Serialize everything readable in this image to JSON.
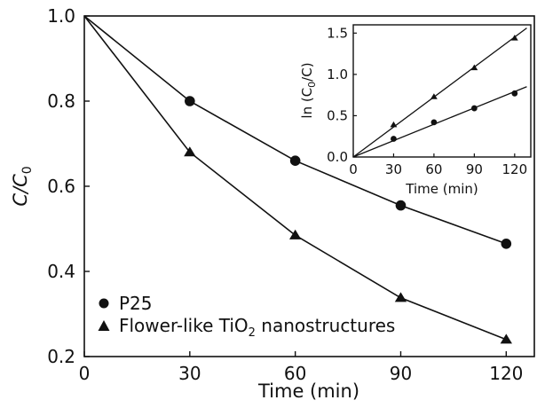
{
  "chart_data": [
    {
      "type": "line",
      "xlabel": "Time (min)",
      "ylabel": {
        "main": "C/C",
        "sub": "0"
      },
      "x": [
        0,
        30,
        60,
        90,
        120
      ],
      "xlim": [
        0,
        128
      ],
      "ylim": [
        0.2,
        1.0
      ],
      "xticks": [
        "0",
        "30",
        "60",
        "90",
        "120"
      ],
      "yticks": [
        "0.2",
        "0.4",
        "0.6",
        "0.8",
        "1.0"
      ],
      "legend_position": "bottom-left",
      "series": [
        {
          "name": "P25",
          "marker": "circle",
          "values": [
            1.0,
            0.8,
            0.66,
            0.555,
            0.465
          ]
        },
        {
          "name": {
            "pre": "Flower-like TiO",
            "sub": "2",
            "post": " nanostructures"
          },
          "marker": "triangle",
          "values": [
            1.0,
            0.68,
            0.485,
            0.338,
            0.24
          ]
        }
      ]
    },
    {
      "type": "scatter",
      "inset": true,
      "inset_position": "top-right",
      "xlabel": "Time (min)",
      "ylabel": {
        "pre": "ln (C",
        "sub": "0",
        "post": "/C)"
      },
      "x": [
        30,
        60,
        90,
        120
      ],
      "xlim": [
        0,
        132
      ],
      "ylim": [
        0.0,
        1.6
      ],
      "xticks": [
        "0",
        "30",
        "60",
        "90",
        "120"
      ],
      "yticks": [
        "0.0",
        "0.5",
        "1.0",
        "1.5"
      ],
      "series": [
        {
          "marker": "circle",
          "values": [
            0.22,
            0.42,
            0.59,
            0.77
          ],
          "fit_slope": 0.0066
        },
        {
          "marker": "triangle",
          "values": [
            0.39,
            0.73,
            1.08,
            1.44
          ],
          "fit_slope": 0.0121
        }
      ]
    }
  ]
}
